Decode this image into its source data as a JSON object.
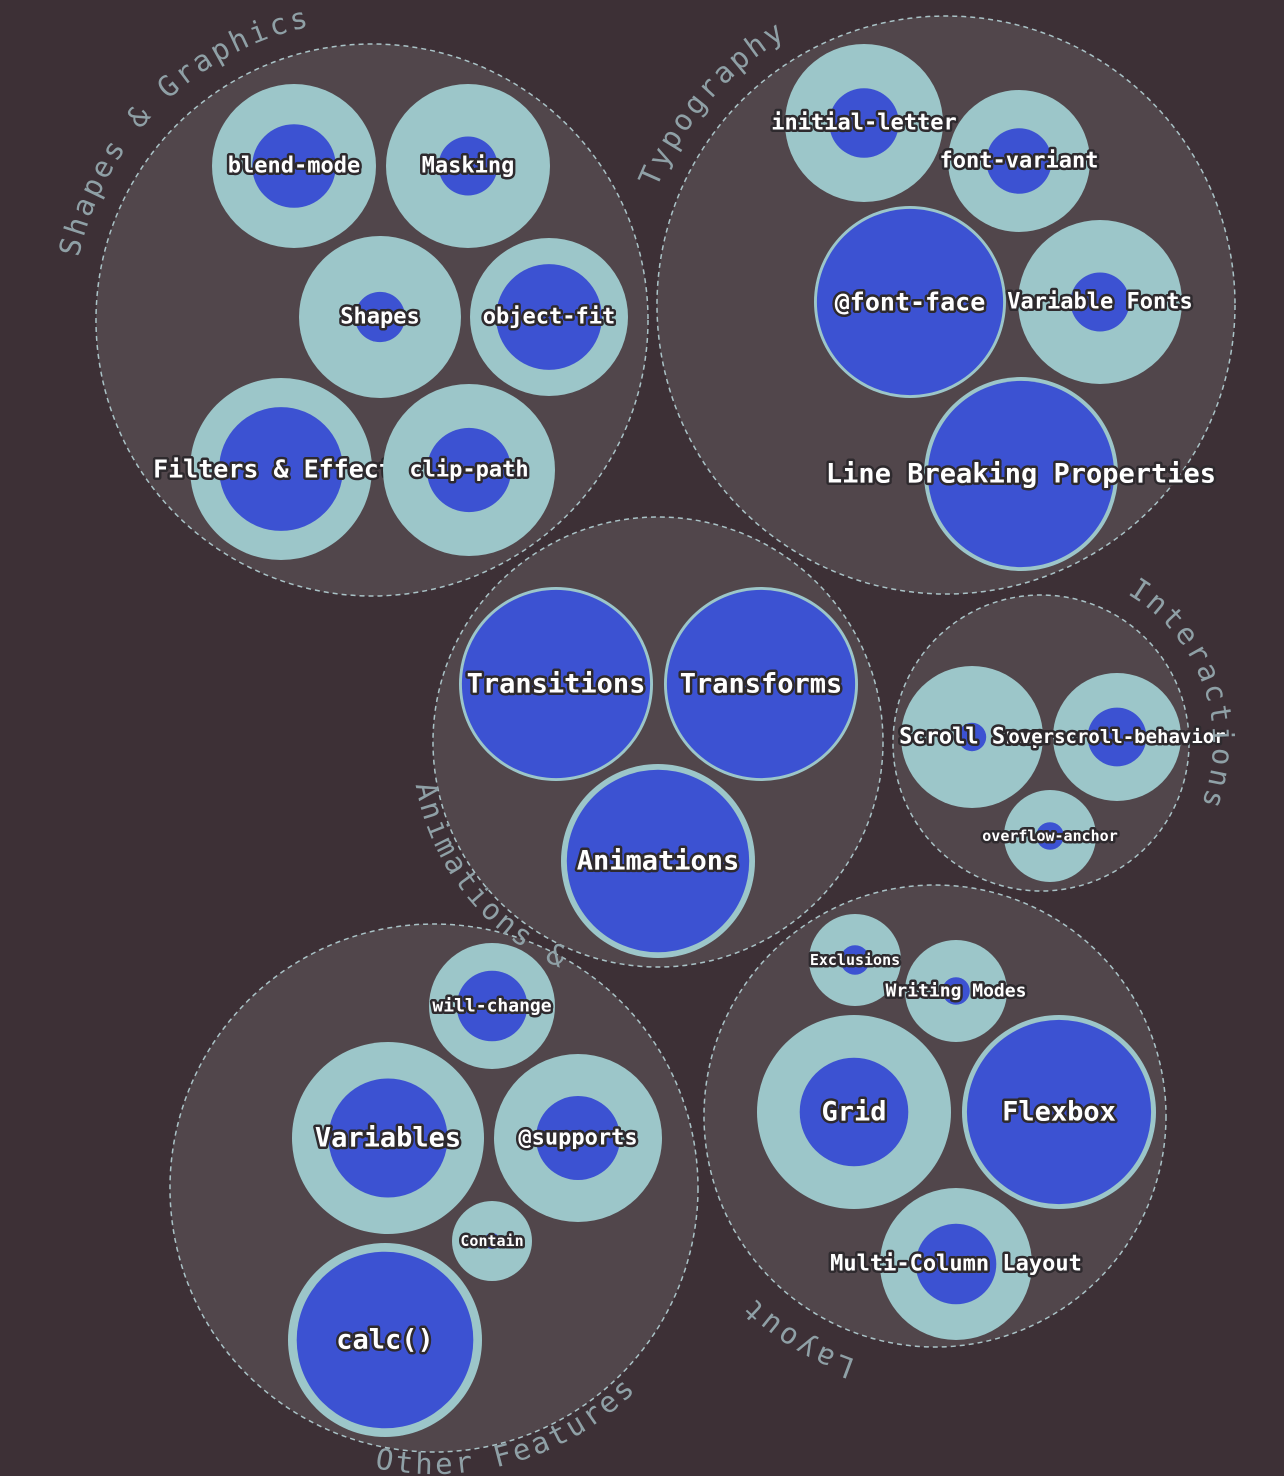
{
  "colors": {
    "background": "#3d3036",
    "group_fill": "#51464b",
    "group_stroke": "#a9c2c6",
    "outer_fill": "#9cc6c9",
    "inner_fill": "#3c52d2",
    "label_text": "#ffffff",
    "group_label_text": "#8fa0a6"
  },
  "groups": [
    {
      "label": "Shapes & Graphics",
      "items": [
        {
          "label": "blend-mode",
          "inner_ratio": 0.51
        },
        {
          "label": "Masking",
          "inner_ratio": 0.36
        },
        {
          "label": "Shapes",
          "inner_ratio": 0.31
        },
        {
          "label": "object-fit",
          "inner_ratio": 0.67
        },
        {
          "label": "Filters & Effects",
          "inner_ratio": 0.68
        },
        {
          "label": "clip-path",
          "inner_ratio": 0.49
        }
      ]
    },
    {
      "label": "Typography",
      "items": [
        {
          "label": "initial-letter",
          "inner_ratio": 0.44
        },
        {
          "label": "font-variant",
          "inner_ratio": 0.46
        },
        {
          "label": "@font-face",
          "inner_ratio": 0.97
        },
        {
          "label": "Variable Fonts",
          "inner_ratio": 0.36
        },
        {
          "label": "Line Breaking Properties",
          "inner_ratio": 0.96
        }
      ]
    },
    {
      "label": "Animations & Transforms",
      "items": [
        {
          "label": "Transitions",
          "inner_ratio": 0.97
        },
        {
          "label": "Transforms",
          "inner_ratio": 0.97
        },
        {
          "label": "Animations",
          "inner_ratio": 0.94
        }
      ]
    },
    {
      "label": "Interactions",
      "items": [
        {
          "label": "Scroll Snap",
          "inner_ratio": 0.2
        },
        {
          "label": "overscroll-behavior",
          "inner_ratio": 0.46
        },
        {
          "label": "overflow-anchor",
          "inner_ratio": 0.3
        }
      ]
    },
    {
      "label": "Other Features",
      "items": [
        {
          "label": "will-change",
          "inner_ratio": 0.56
        },
        {
          "label": "Variables",
          "inner_ratio": 0.62
        },
        {
          "label": "@supports",
          "inner_ratio": 0.5
        },
        {
          "label": "Contain",
          "inner_ratio": 0.2
        },
        {
          "label": "calc()",
          "inner_ratio": 0.91
        }
      ]
    },
    {
      "label": "Layout",
      "items": [
        {
          "label": "Exclusions",
          "inner_ratio": 0.32
        },
        {
          "label": "Writing Modes",
          "inner_ratio": 0.27
        },
        {
          "label": "Grid",
          "inner_ratio": 0.56
        },
        {
          "label": "Flexbox",
          "inner_ratio": 0.95
        },
        {
          "label": "Multi-Column Layout",
          "inner_ratio": 0.53
        }
      ]
    }
  ]
}
